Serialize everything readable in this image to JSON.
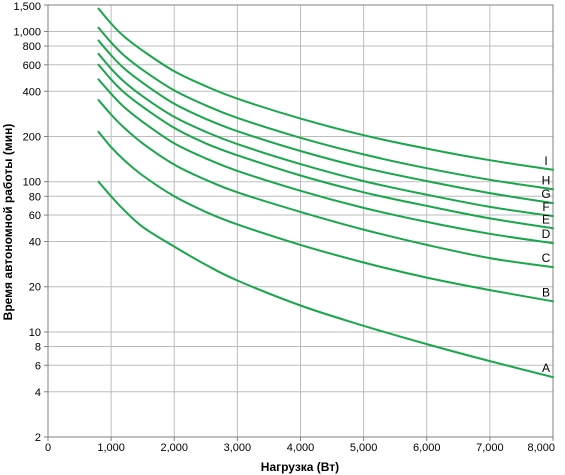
{
  "chart_data": {
    "type": "line",
    "title": "",
    "xlabel": "Нагрузка (Вт)",
    "ylabel": "Время автономной работы (мин)",
    "x_scale": "linear",
    "y_scale": "log",
    "xlim": [
      0,
      8000
    ],
    "ylim": [
      2,
      1500
    ],
    "grid": true,
    "legend": "none",
    "line_color": "#1aa64a",
    "grid_color": "#bdbdbd",
    "x_ticks": [
      0,
      1000,
      2000,
      3000,
      4000,
      5000,
      6000,
      7000,
      8000
    ],
    "x_tick_labels": [
      "0",
      "1,000",
      "2,000",
      "3,000",
      "4,000",
      "5,000",
      "6,000",
      "7,000",
      "8,000"
    ],
    "y_ticks": [
      2,
      4,
      6,
      8,
      10,
      20,
      40,
      60,
      80,
      100,
      200,
      400,
      600,
      800,
      1000,
      1500
    ],
    "y_tick_labels": [
      "2",
      "4",
      "6",
      "8",
      "10",
      "20",
      "40",
      "60",
      "80",
      "100",
      "200",
      "400",
      "600",
      "800",
      "1,000",
      "1,500"
    ],
    "series": [
      {
        "name": "A",
        "x": [
          800,
          1000,
          1200,
          1500,
          2000,
          2500,
          3000,
          4000,
          5000,
          6000,
          7000,
          8000
        ],
        "values": [
          100,
          80,
          65,
          50,
          37,
          28,
          22,
          15,
          11,
          8.3,
          6.4,
          5
        ]
      },
      {
        "name": "B",
        "x": [
          800,
          1000,
          1200,
          1500,
          2000,
          2500,
          3000,
          4000,
          5000,
          6000,
          7000,
          8000
        ],
        "values": [
          215,
          170,
          140,
          110,
          80,
          63,
          52,
          38,
          29,
          23,
          19,
          16
        ]
      },
      {
        "name": "C",
        "x": [
          800,
          1000,
          1200,
          1500,
          2000,
          2500,
          3000,
          4000,
          5000,
          6000,
          7000,
          8000
        ],
        "values": [
          350,
          280,
          230,
          180,
          130,
          103,
          85,
          63,
          48,
          38,
          31,
          27
        ]
      },
      {
        "name": "D",
        "x": [
          800,
          1000,
          1200,
          1500,
          2000,
          2500,
          3000,
          4000,
          5000,
          6000,
          7000,
          8000
        ],
        "values": [
          480,
          385,
          315,
          250,
          180,
          143,
          118,
          87,
          67,
          54,
          45,
          39
        ]
      },
      {
        "name": "E",
        "x": [
          800,
          1000,
          1200,
          1500,
          2000,
          2500,
          3000,
          4000,
          5000,
          6000,
          7000,
          8000
        ],
        "values": [
          600,
          480,
          395,
          315,
          228,
          180,
          150,
          110,
          85,
          69,
          57,
          49
        ]
      },
      {
        "name": "F",
        "x": [
          800,
          1000,
          1200,
          1500,
          2000,
          2500,
          3000,
          4000,
          5000,
          6000,
          7000,
          8000
        ],
        "values": [
          710,
          565,
          465,
          370,
          270,
          215,
          178,
          131,
          101,
          82,
          68,
          59
        ]
      },
      {
        "name": "G",
        "x": [
          800,
          1000,
          1200,
          1500,
          2000,
          2500,
          3000,
          4000,
          5000,
          6000,
          7000,
          8000
        ],
        "values": [
          870,
          695,
          570,
          455,
          330,
          262,
          217,
          160,
          124,
          101,
          84,
          72
        ]
      },
      {
        "name": "H",
        "x": [
          800,
          1000,
          1200,
          1500,
          2000,
          2500,
          3000,
          4000,
          5000,
          6000,
          7000,
          8000
        ],
        "values": [
          1060,
          845,
          695,
          555,
          405,
          322,
          266,
          196,
          152,
          123,
          103,
          89
        ]
      },
      {
        "name": "I",
        "x": [
          800,
          1000,
          1200,
          1500,
          2000,
          2500,
          3000,
          4000,
          5000,
          6000,
          7000,
          8000
        ],
        "values": [
          1420,
          1130,
          930,
          745,
          543,
          432,
          357,
          263,
          204,
          166,
          139,
          120
        ]
      }
    ]
  }
}
